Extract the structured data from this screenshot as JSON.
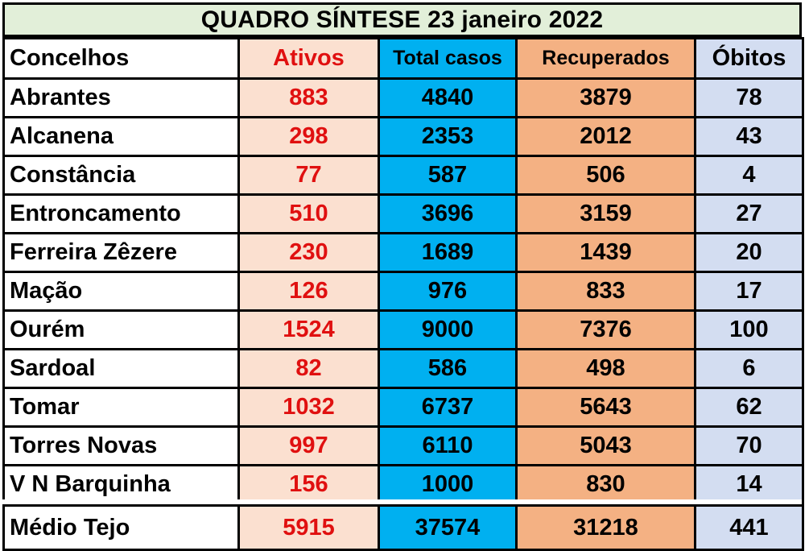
{
  "title": "QUADRO SÍNTESE 23 janeiro 2022",
  "headers": {
    "concelho": "Concelhos",
    "ativos": "Ativos",
    "total": "Total casos",
    "recuperados": "Recuperados",
    "obitos": "Óbitos"
  },
  "rows": [
    {
      "concelho": "Abrantes",
      "ativos": "883",
      "total": "4840",
      "recuperados": "3879",
      "obitos": "78"
    },
    {
      "concelho": "Alcanena",
      "ativos": "298",
      "total": "2353",
      "recuperados": "2012",
      "obitos": "43"
    },
    {
      "concelho": "Constância",
      "ativos": "77",
      "total": "587",
      "recuperados": "506",
      "obitos": "4"
    },
    {
      "concelho": "Entroncamento",
      "ativos": "510",
      "total": "3696",
      "recuperados": "3159",
      "obitos": "27"
    },
    {
      "concelho": "Ferreira Zêzere",
      "ativos": "230",
      "total": "1689",
      "recuperados": "1439",
      "obitos": "20"
    },
    {
      "concelho": "Mação",
      "ativos": "126",
      "total": "976",
      "recuperados": "833",
      "obitos": "17"
    },
    {
      "concelho": "Ourém",
      "ativos": "1524",
      "total": "9000",
      "recuperados": "7376",
      "obitos": "100"
    },
    {
      "concelho": "Sardoal",
      "ativos": "82",
      "total": "586",
      "recuperados": "498",
      "obitos": "6"
    },
    {
      "concelho": "Tomar",
      "ativos": "1032",
      "total": "6737",
      "recuperados": "5643",
      "obitos": "62"
    },
    {
      "concelho": "Torres Novas",
      "ativos": "997",
      "total": "6110",
      "recuperados": "5043",
      "obitos": "70"
    },
    {
      "concelho": "V N Barquinha",
      "ativos": "156",
      "total": "1000",
      "recuperados": "830",
      "obitos": "14"
    }
  ],
  "totals": {
    "concelho": "Médio Tejo",
    "ativos": "5915",
    "total": "37574",
    "recuperados": "31218",
    "obitos": "441"
  },
  "colors": {
    "title_bg": "#e2efd9",
    "ativos_bg": "#fbe0d0",
    "ativos_text": "#e01010",
    "total_bg": "#00b0f0",
    "recuperados_bg": "#f4b183",
    "obitos_bg": "#d3ddf1"
  }
}
